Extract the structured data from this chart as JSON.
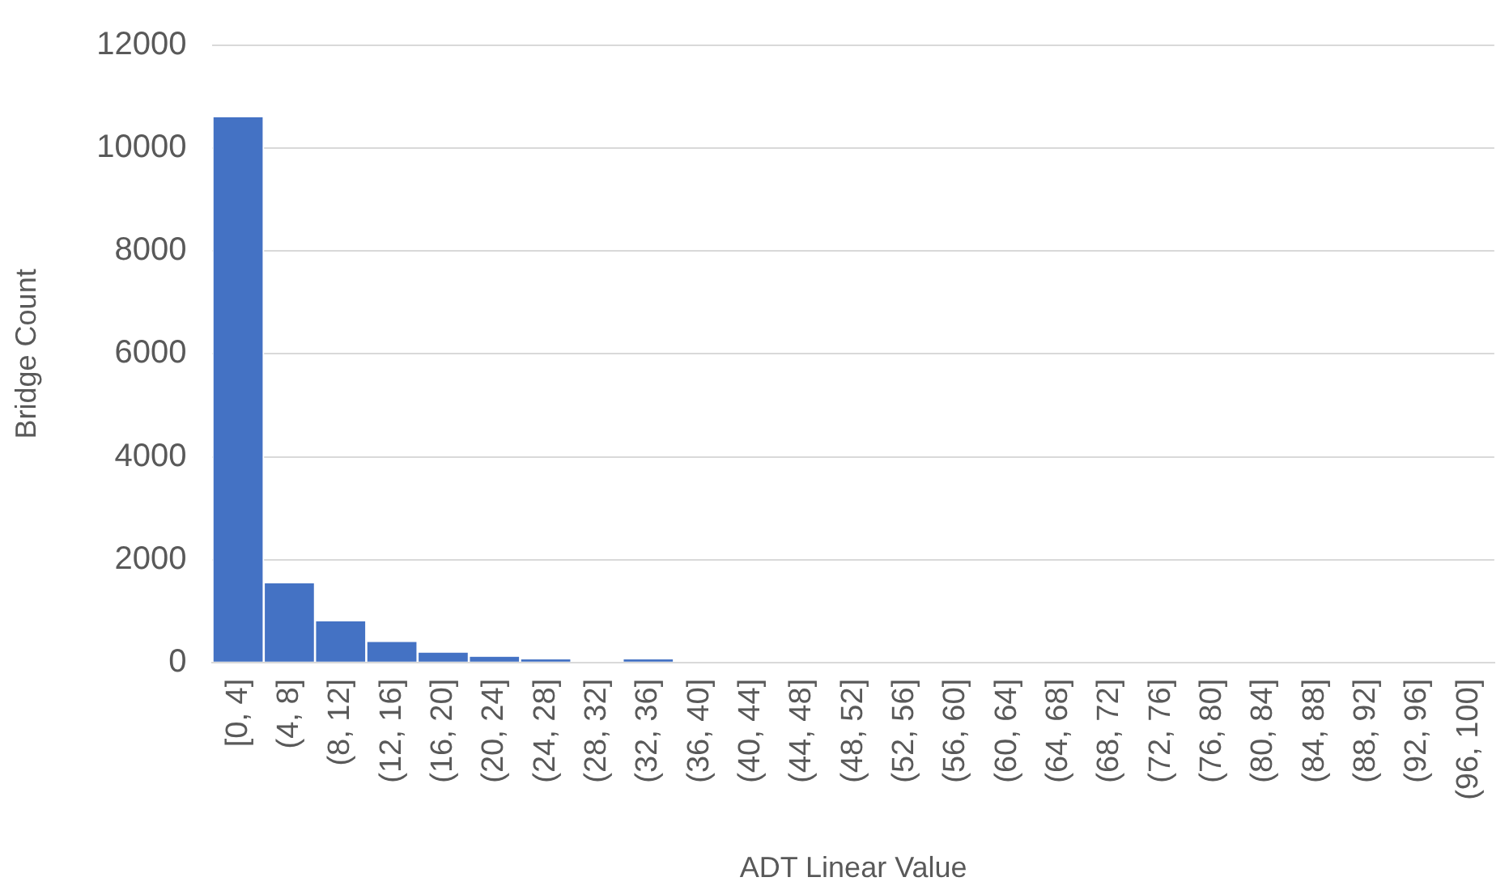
{
  "chart_data": {
    "type": "bar",
    "xlabel": "ADT Linear Value",
    "ylabel": "Bridge Count",
    "categories": [
      "[0, 4]",
      "(4, 8]",
      "(8, 12]",
      "(12, 16]",
      "(16, 20]",
      "(20, 24]",
      "(24, 28]",
      "(28, 32]",
      "(32, 36]",
      "(36, 40]",
      "(40, 44]",
      "(44, 48]",
      "(48, 52]",
      "(52, 56]",
      "(56, 60]",
      "(60, 64]",
      "(64, 68]",
      "(68, 72]",
      "(72, 76]",
      "(76, 80]",
      "(80, 84]",
      "(84, 88]",
      "(88, 92]",
      "(92, 96]",
      "(96, 100]"
    ],
    "values": [
      10600,
      1540,
      800,
      400,
      190,
      110,
      60,
      0,
      60,
      0,
      0,
      0,
      0,
      0,
      0,
      0,
      0,
      0,
      0,
      0,
      0,
      0,
      0,
      0,
      0
    ],
    "color": "#4472c4",
    "ylim": [
      0,
      12000
    ],
    "yticks": [
      0,
      2000,
      4000,
      6000,
      8000,
      10000,
      12000
    ],
    "grid": "y"
  }
}
